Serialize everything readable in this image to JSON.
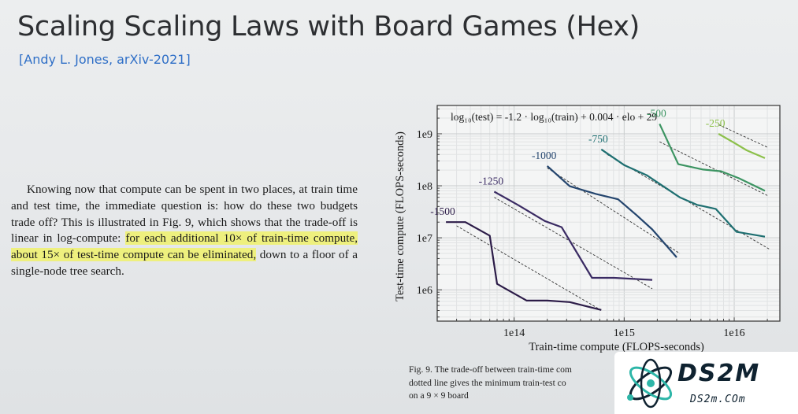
{
  "slide": {
    "title": "Scaling Scaling Laws with Board Games (Hex)",
    "citation": "[Andy L. Jones, arXiv-2021]"
  },
  "paragraph": {
    "before": "Knowing now that compute can be spent in two places, at train time and test time, the immediate question is: how do these two budgets trade off? This is illustrated in Fig. 9, which shows that the trade-off is linear in log-compute: ",
    "highlight": "for each additional 10× of train-time compute, about 15× of test-time compute can be eliminated,",
    "after": " down to a floor of a single-node tree search.",
    "highlight_color": "#eef07e"
  },
  "figure_caption": {
    "line1": "Fig. 9.  The trade-off between train-time com",
    "line2": "dotted line gives the minimum train-test co",
    "line3": "on a 9 × 9 board"
  },
  "logo": {
    "name": "DS2M",
    "url_text": "DS2m.COm"
  },
  "chart_data": {
    "type": "line",
    "equation": "log₁₀(test) = -1.2 · log₁₀(train) + 0.004 · elo + 29",
    "xlabel": "Train-time compute (FLOPS-seconds)",
    "ylabel": "Test-time compute (FLOPS-seconds)",
    "x_scale": "log",
    "y_scale": "log",
    "xlim": [
      20000000000000.0,
      2.6e+16
    ],
    "ylim": [
      250000.0,
      3500000000.0
    ],
    "x_ticks": [
      {
        "value": 100000000000000.0,
        "label": "1e14"
      },
      {
        "value": 1000000000000000.0,
        "label": "1e15"
      },
      {
        "value": 1e+16,
        "label": "1e16"
      }
    ],
    "y_ticks": [
      {
        "value": 1000000.0,
        "label": "1e6"
      },
      {
        "value": 10000000.0,
        "label": "1e7"
      },
      {
        "value": 100000000.0,
        "label": "1e8"
      },
      {
        "value": 1000000000.0,
        "label": "1e9"
      }
    ],
    "grid": true,
    "series": [
      {
        "name": "-1500",
        "color": "#2c1c48",
        "x": [
          24000000000000.0,
          36000000000000.0,
          60000000000000.0,
          70000000000000.0,
          130000000000000.0,
          200000000000000.0,
          320000000000000.0,
          620000000000000.0
        ],
        "y": [
          20000000.0,
          20000000.0,
          11000000.0,
          1300000.0,
          620000.0,
          620000.0,
          580000.0,
          410000.0
        ],
        "trend_x": [
          30000000000000.0,
          600000000000000.0
        ],
        "trend_y": [
          17000000.0,
          420000.0
        ]
      },
      {
        "name": "-1250",
        "color": "#3a2b63",
        "x": [
          66000000000000.0,
          110000000000000.0,
          190000000000000.0,
          270000000000000.0,
          510000000000000.0,
          810000000000000.0,
          1800000000000000.0
        ],
        "y": [
          77000000.0,
          42000000.0,
          21000000.0,
          16000000.0,
          1700000.0,
          1700000.0,
          1550000.0
        ],
        "trend_x": [
          66000000000000.0,
          1800000000000000.0
        ],
        "trend_y": [
          60000000.0,
          1050000.0
        ]
      },
      {
        "name": "-1000",
        "color": "#24456e",
        "x": [
          200000000000000.0,
          320000000000000.0,
          550000000000000.0,
          880000000000000.0,
          1300000000000000.0,
          1800000000000000.0,
          3000000000000000.0
        ],
        "y": [
          240000000.0,
          98000000.0,
          70000000.0,
          55000000.0,
          27000000.0,
          14500000.0,
          4200000.0
        ],
        "trend_x": [
          200000000000000.0,
          3200000000000000.0
        ],
        "trend_y": [
          220000000.0,
          5000000.0
        ]
      },
      {
        "name": "-750",
        "color": "#1e6f71",
        "x": [
          620000000000000.0,
          1000000000000000.0,
          1600000000000000.0,
          3200000000000000.0,
          4600000000000000.0,
          6800000000000000.0,
          1.05e+16,
          1.9e+16
        ],
        "y": [
          500000000.0,
          250000000.0,
          160000000.0,
          60000000.0,
          43000000.0,
          36000000.0,
          13000000.0,
          10500000.0
        ],
        "trend_x": [
          700000000000000.0,
          2.1e+16
        ],
        "trend_y": [
          400000000.0,
          6000000.0
        ]
      },
      {
        "name": "-500",
        "color": "#3c9462",
        "x": [
          2100000000000000.0,
          3100000000000000.0,
          5200000000000000.0,
          7600000000000000.0,
          1.1e+16,
          1.9e+16
        ],
        "y": [
          1550000000.0,
          260000000.0,
          205000000.0,
          190000000.0,
          140000000.0,
          80000000.0
        ],
        "trend_x": [
          2100000000000000.0,
          2e+16
        ],
        "trend_y": [
          700000000.0,
          65000000.0
        ]
      },
      {
        "name": "-250",
        "color": "#8cc04a",
        "x": [
          7200000000000000.0,
          1e+16,
          1.3e+16,
          1.9e+16
        ],
        "y": [
          1000000000.0,
          670000000.0,
          480000000.0,
          340000000.0
        ],
        "trend_x": [
          7200000000000000.0,
          2e+16
        ],
        "trend_y": [
          1500000000.0,
          550000000.0
        ]
      }
    ]
  }
}
